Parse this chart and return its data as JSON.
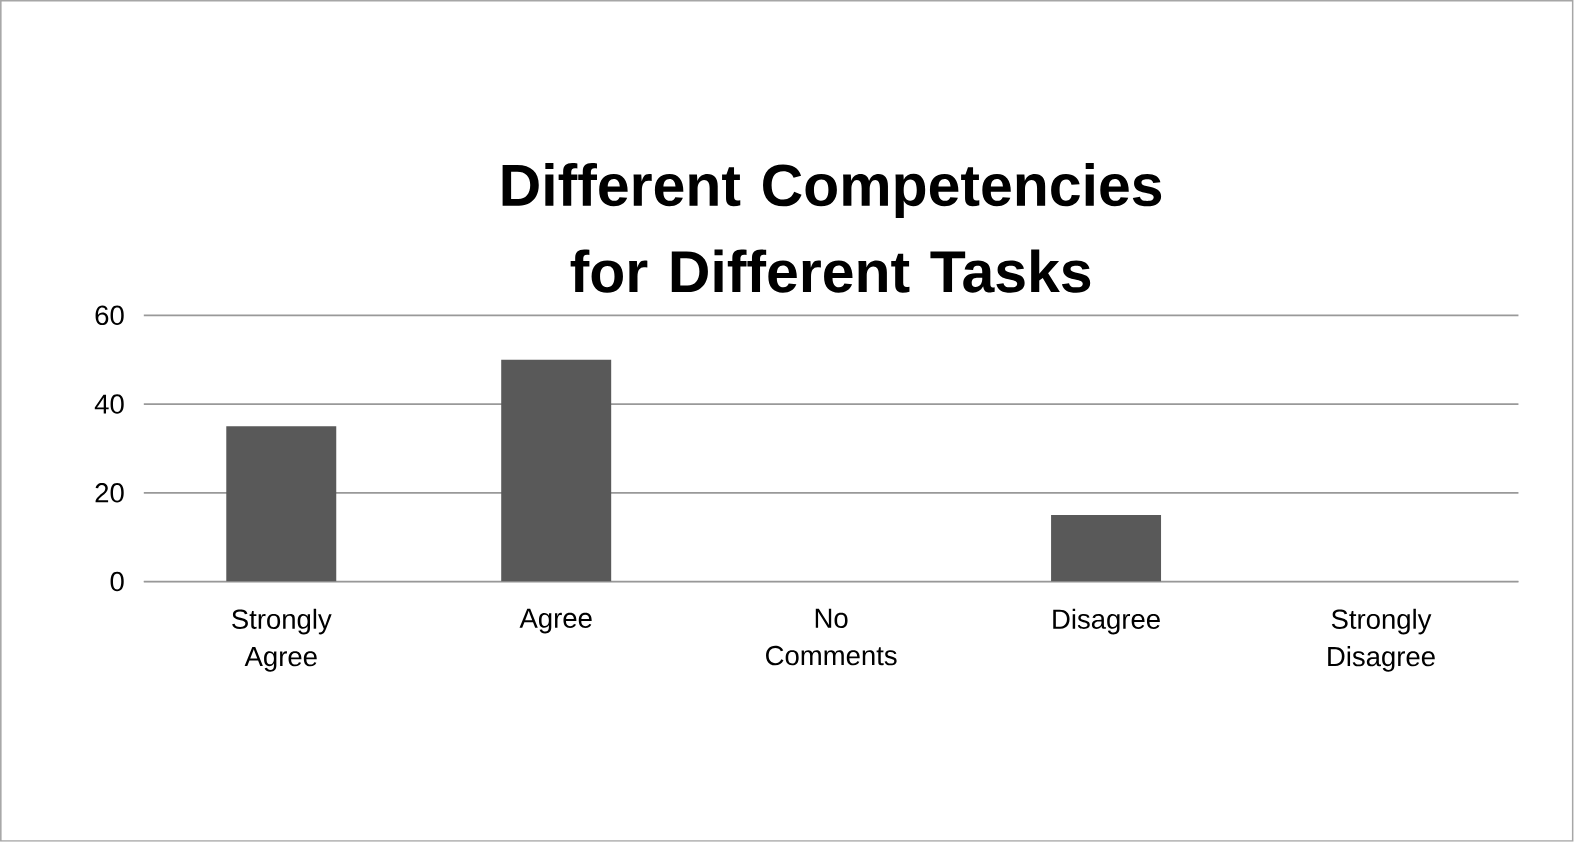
{
  "chart_data": {
    "type": "bar",
    "title": "Different Competencies for Different Tasks",
    "categories": [
      "Strongly Agree",
      "Agree",
      "No Comments",
      "Disagree",
      "Strongly Disagree"
    ],
    "values": [
      35,
      50,
      0,
      15,
      0
    ],
    "color": "#595959",
    "ylim": [
      0,
      60
    ],
    "yticks": [
      0,
      20,
      40,
      60
    ],
    "grid": "y"
  }
}
